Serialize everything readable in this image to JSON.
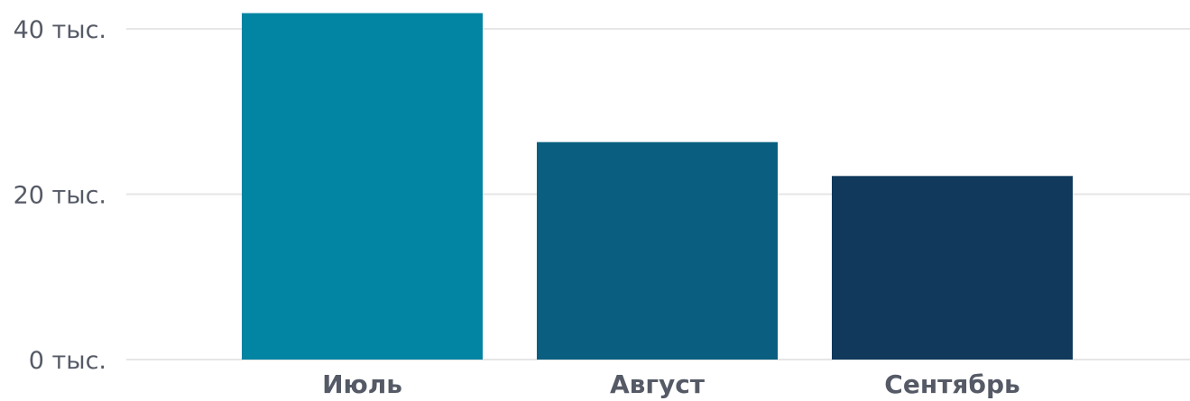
{
  "chart_data": {
    "type": "bar",
    "categories": [
      "Июль",
      "Август",
      "Сентябрь"
    ],
    "values": [
      41900,
      26300,
      22200
    ],
    "colors": [
      "#0284a3",
      "#0a5f80",
      "#10395b"
    ],
    "ylim": [
      0,
      40000
    ],
    "yticks": [
      {
        "value": 0,
        "label": "0 тыс."
      },
      {
        "value": 20000,
        "label": "20 тыс."
      },
      {
        "value": 40000,
        "label": "40 тыс."
      }
    ],
    "grid": true,
    "title": "",
    "xlabel": "",
    "ylabel": ""
  }
}
